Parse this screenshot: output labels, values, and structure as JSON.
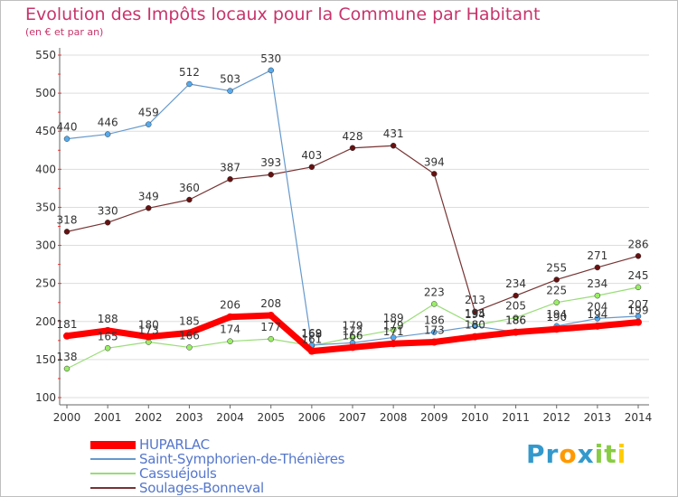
{
  "chart_data": {
    "type": "line",
    "title": "Evolution des Impôts locaux pour la Commune par Habitant",
    "subtitle": "(en € et par an)",
    "x": [
      "2000",
      "2001",
      "2002",
      "2003",
      "2004",
      "2005",
      "2006",
      "2007",
      "2008",
      "2009",
      "2010",
      "2011",
      "2012",
      "2013",
      "2014"
    ],
    "ylim": [
      100,
      550
    ],
    "yticks": [
      100,
      150,
      200,
      250,
      300,
      350,
      400,
      450,
      500,
      550
    ],
    "series": [
      {
        "name": "HUPARLAC",
        "color": "#ff0000",
        "values": [
          181,
          188,
          180,
          185,
          206,
          208,
          161,
          166,
          171,
          173,
          180,
          186,
          190,
          194,
          199
        ]
      },
      {
        "name": "Saint-Symphorien-de-Thénières",
        "color": "#6699cc",
        "values": [
          440,
          446,
          459,
          512,
          503,
          530,
          169,
          172,
          179,
          186,
          194,
          186,
          194,
          204,
          207
        ]
      },
      {
        "name": "Cassuéjouls",
        "color": "#99dd77",
        "values": [
          138,
          165,
          173,
          166,
          174,
          177,
          168,
          179,
          189,
          223,
          195,
          205,
          225,
          234,
          245
        ]
      },
      {
        "name": "Soulages-Bonneval",
        "color": "#773333",
        "values": [
          318,
          330,
          349,
          360,
          387,
          393,
          403,
          428,
          431,
          394,
          213,
          234,
          255,
          271,
          286
        ]
      }
    ]
  },
  "logo": {
    "text": "Proxiti",
    "letters": [
      "P",
      "r",
      "o",
      "x",
      "i",
      "t",
      "i"
    ],
    "colors": [
      "#3399cc",
      "#3399cc",
      "#ff9900",
      "#3399cc",
      "#88cc44",
      "#88cc44",
      "#ffcc00"
    ]
  }
}
